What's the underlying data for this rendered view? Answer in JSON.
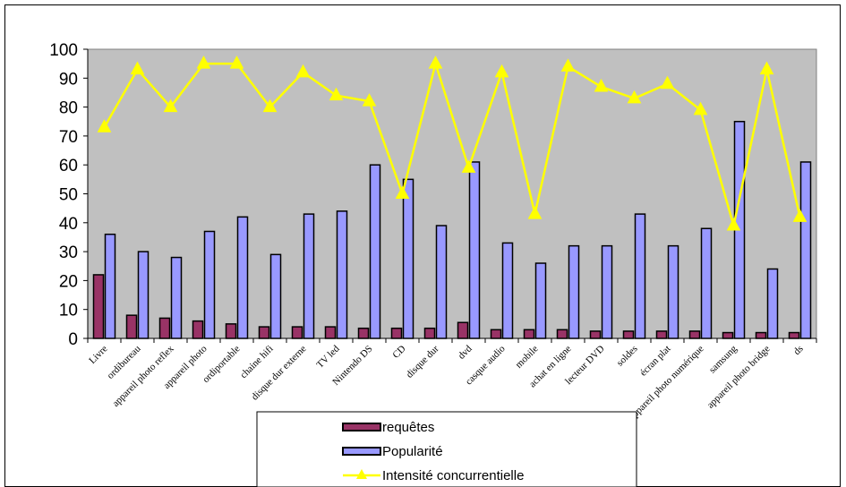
{
  "chart_data": {
    "type": "bar",
    "categories": [
      "Livre",
      "ordibureau",
      "appareil photo reflex",
      "appareil photo",
      "ordiportable",
      "chaine hifi",
      "disque dur externe",
      "TV led",
      "Nintendo DS",
      "CD",
      "disque dur",
      "dvd",
      "casque audio",
      "mobile",
      "achat en ligne",
      "lecteur DVD",
      "soldes",
      "écran plat",
      "appareil photo numérique",
      "samsung",
      "appareil photo bridge",
      "ds"
    ],
    "series": [
      {
        "name": "requêtes",
        "kind": "bar",
        "color": "#993366",
        "values": [
          22,
          8,
          7,
          6,
          5,
          4,
          4,
          4,
          3.5,
          3.5,
          3.5,
          5.5,
          3,
          3,
          3,
          2.5,
          2.5,
          2.5,
          2.5,
          2,
          2,
          2
        ]
      },
      {
        "name": "Popularité",
        "kind": "bar",
        "color": "#9999ff",
        "values": [
          36,
          30,
          28,
          37,
          42,
          29,
          43,
          44,
          60,
          55,
          39,
          61,
          33,
          26,
          32,
          32,
          43,
          32,
          38,
          75,
          24,
          61
        ]
      },
      {
        "name": "Intensité concurrentielle",
        "kind": "line",
        "color": "#ffff00",
        "values": [
          73,
          93,
          80,
          95,
          95,
          80,
          92,
          84,
          82,
          50,
          95,
          59,
          92,
          43,
          94,
          87,
          83,
          88,
          79,
          39,
          93,
          42
        ]
      }
    ],
    "ylim": [
      0,
      100
    ],
    "yticks": [
      "0",
      "10",
      "20",
      "30",
      "40",
      "50",
      "60",
      "70",
      "80",
      "90",
      "100"
    ],
    "plot_background": "#c0c0c0",
    "grid": false,
    "legend": "bottom-center"
  }
}
